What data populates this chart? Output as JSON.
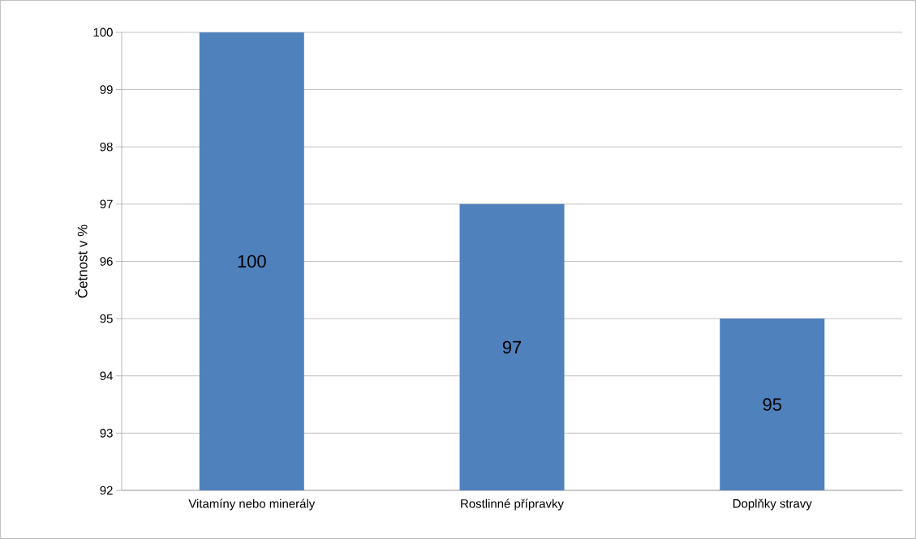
{
  "chart_data": {
    "type": "bar",
    "ylabel": "Četnost v %",
    "categories": [
      "Vitamíny nebo minerály",
      "Rostlinné přípravky",
      "Doplňky stravy"
    ],
    "values": [
      100,
      97,
      95
    ],
    "color": "#4f81bd",
    "ylim": [
      92,
      100
    ],
    "yticks": [
      92,
      93,
      94,
      95,
      96,
      97,
      98,
      99,
      100
    ],
    "grid": "y",
    "data_labels": true
  }
}
